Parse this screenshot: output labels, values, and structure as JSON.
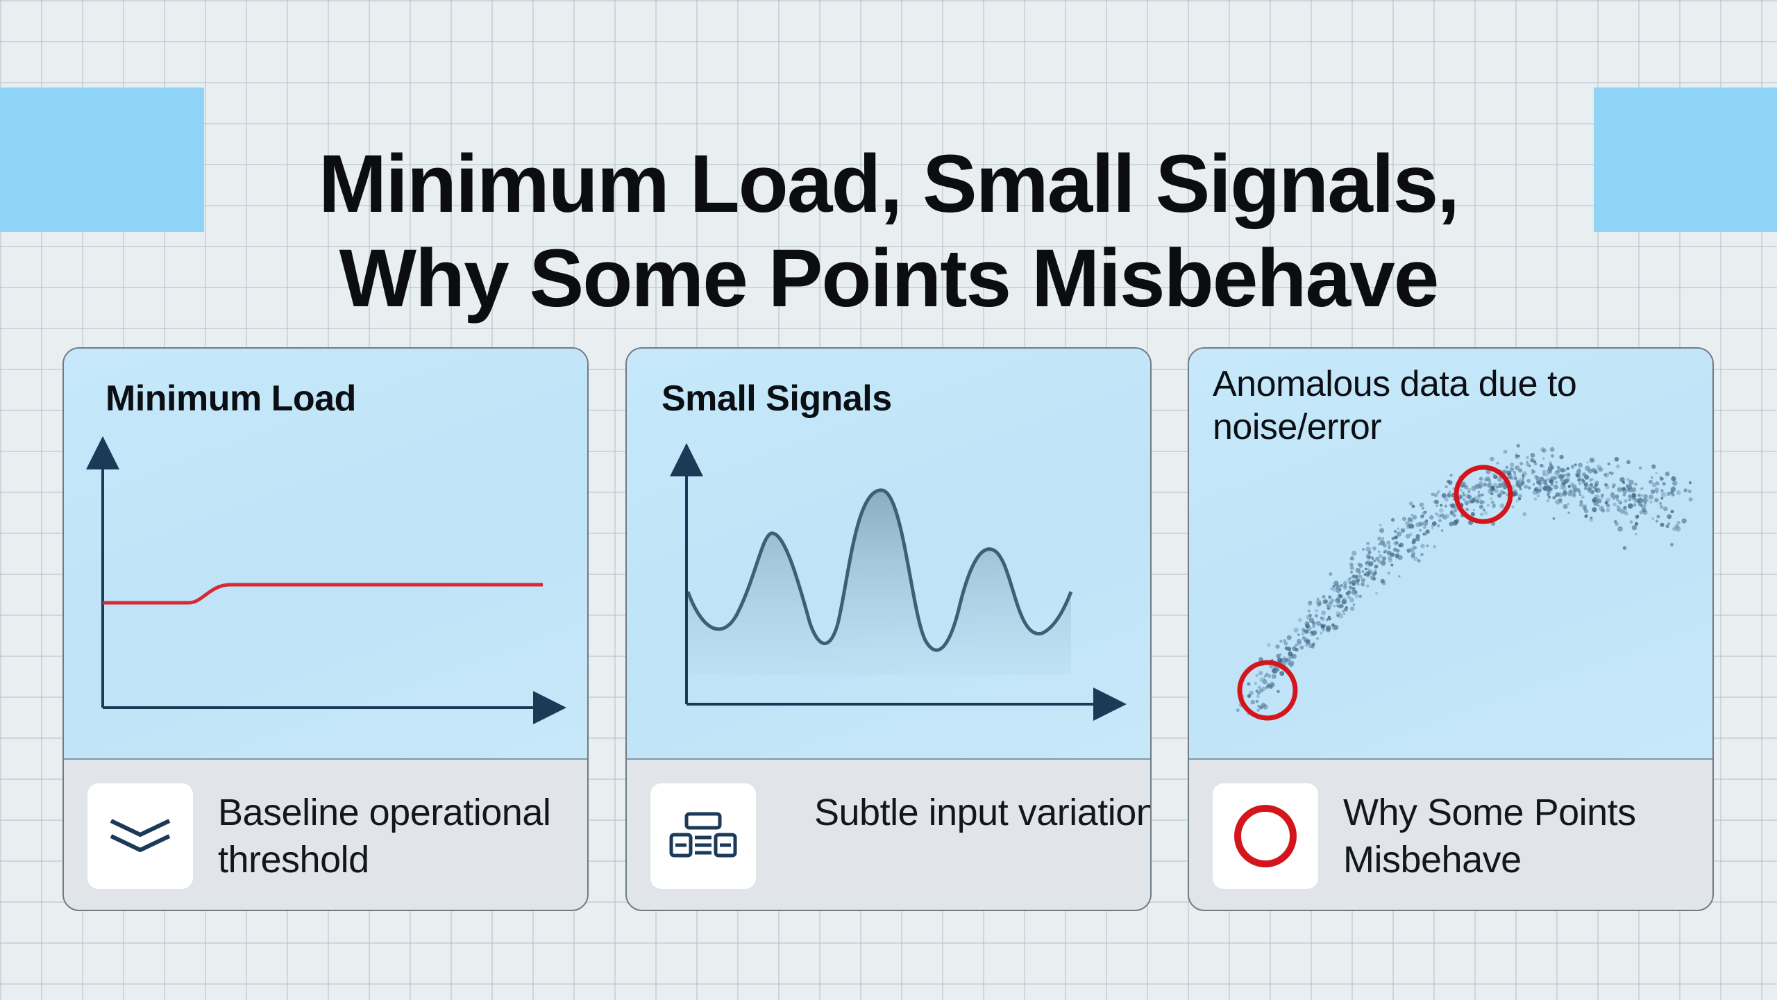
{
  "title": {
    "line1": "Minimum Load, Small Signals,",
    "line2": "Why Some Points Misbehave"
  },
  "colors": {
    "accent_block": "#8fd3f7",
    "threshold_line": "#d62b36",
    "axis": "#1b3a57",
    "highlight_ring": "#d4161c"
  },
  "cards": [
    {
      "heading": "Minimum Load",
      "description": "Baseline operational threshold",
      "icon": "double-chevron-down-icon"
    },
    {
      "heading": "Small Signals",
      "description": "Subtle input variations",
      "icon": "data-blocks-icon"
    },
    {
      "heading": "Anomalous data due to noise/error",
      "description": "Why Some Points Misbehave",
      "icon": "red-ring-icon"
    }
  ]
}
